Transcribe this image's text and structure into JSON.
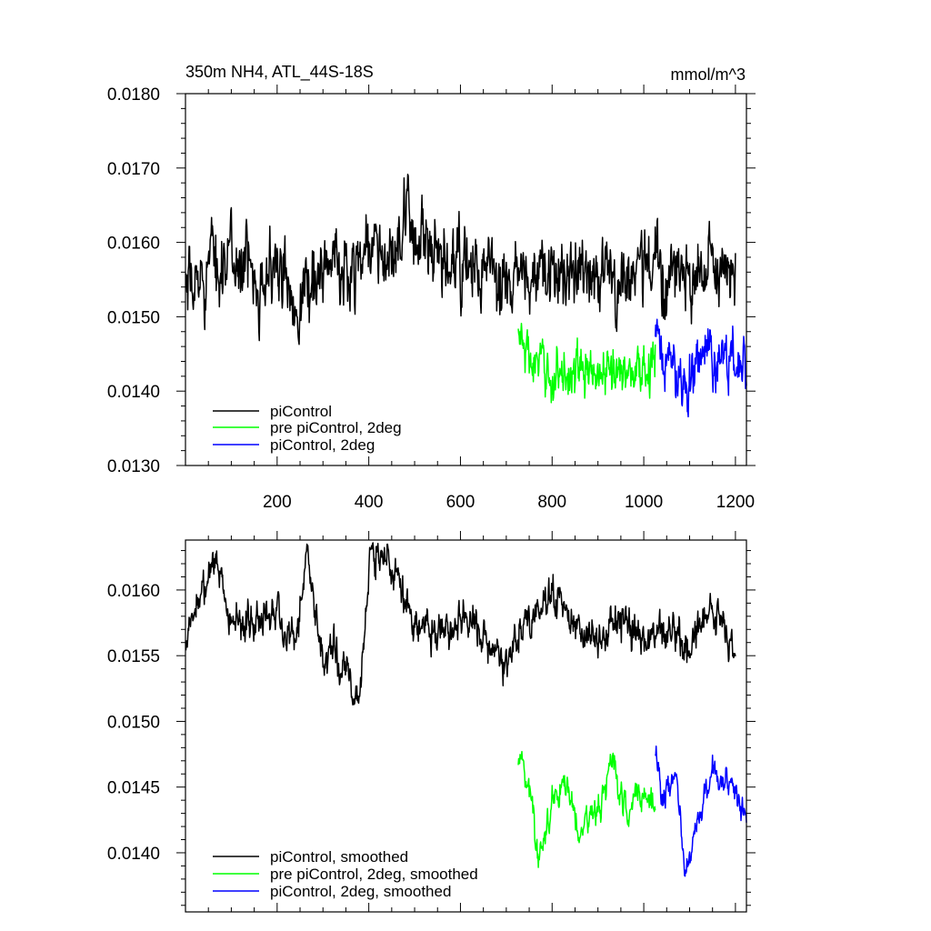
{
  "chart_data": [
    {
      "type": "line",
      "title_left": "350m NH4, ATL_44S-18S",
      "title_right": "mmol/m^3",
      "xlim": [
        0,
        1224
      ],
      "ylim": [
        0.013,
        0.018
      ],
      "xticks": [
        "200",
        "400",
        "600",
        "800",
        "1000",
        "1200"
      ],
      "xtick_values": [
        200,
        400,
        600,
        800,
        1000,
        1200
      ],
      "yticks": [
        "0.0130",
        "0.0140",
        "0.0150",
        "0.0160",
        "0.0170",
        "0.0180"
      ],
      "ytick_values": [
        0.013,
        0.014,
        0.015,
        0.016,
        0.017,
        0.018
      ],
      "legend_position": "bottom-left",
      "series": [
        {
          "name": "piControl",
          "color": "#000000",
          "x_start": 1,
          "x_end": 1200,
          "points": [
            [
              1,
              0.0152
            ],
            [
              50,
              0.0157
            ],
            [
              100,
              0.0158
            ],
            [
              150,
              0.0156
            ],
            [
              200,
              0.0156
            ],
            [
              245,
              0.0152
            ],
            [
              300,
              0.0157
            ],
            [
              350,
              0.0156
            ],
            [
              400,
              0.016
            ],
            [
              450,
              0.0157
            ],
            [
              490,
              0.0163
            ],
            [
              550,
              0.0156
            ],
            [
              600,
              0.0157
            ],
            [
              650,
              0.0156
            ],
            [
              700,
              0.0154
            ],
            [
              750,
              0.0155
            ],
            [
              800,
              0.0155
            ],
            [
              850,
              0.0157
            ],
            [
              900,
              0.0156
            ],
            [
              950,
              0.0155
            ],
            [
              1000,
              0.0157
            ],
            [
              1050,
              0.0156
            ],
            [
              1100,
              0.0155
            ],
            [
              1150,
              0.0156
            ],
            [
              1200,
              0.0155
            ]
          ],
          "mean": 0.0157,
          "noise": 0.00045,
          "min": 0.0146,
          "max": 0.0171
        },
        {
          "name": "pre piControl, 2deg",
          "color": "#00ff00",
          "x_start": 726,
          "x_end": 1025,
          "points": [
            [
              726,
              0.0148
            ],
            [
              750,
              0.0144
            ],
            [
              800,
              0.0142
            ],
            [
              850,
              0.0143
            ],
            [
              900,
              0.0142
            ],
            [
              950,
              0.0143
            ],
            [
              1000,
              0.0143
            ],
            [
              1025,
              0.0144
            ]
          ],
          "mean": 0.0143,
          "noise": 0.0003,
          "min": 0.0134,
          "max": 0.0153
        },
        {
          "name": "piControl, 2deg",
          "color": "#0000ff",
          "x_start": 1025,
          "x_end": 1224,
          "points": [
            [
              1025,
              0.0146
            ],
            [
              1050,
              0.0144
            ],
            [
              1090,
              0.0141
            ],
            [
              1120,
              0.0145
            ],
            [
              1150,
              0.0144
            ],
            [
              1190,
              0.0145
            ],
            [
              1224,
              0.0142
            ]
          ],
          "mean": 0.0144,
          "noise": 0.00035,
          "min": 0.0133,
          "max": 0.0151
        }
      ]
    },
    {
      "type": "line",
      "xlim": [
        0,
        1224
      ],
      "ylim": [
        0.01355,
        0.01638
      ],
      "xtick_values": [
        200,
        400,
        600,
        800,
        1000,
        1200
      ],
      "yticks": [
        "0.0140",
        "0.0145",
        "0.0150",
        "0.0155",
        "0.0160"
      ],
      "ytick_values": [
        0.014,
        0.0145,
        0.015,
        0.0155,
        0.016
      ],
      "legend_position": "bottom-left",
      "series": [
        {
          "name": "piControl, smoothed",
          "color": "#000000",
          "x_start": 1,
          "x_end": 1200,
          "points": [
            [
              1,
              0.01558
            ],
            [
              30,
              0.01598
            ],
            [
              70,
              0.01625
            ],
            [
              100,
              0.0157
            ],
            [
              150,
              0.01578
            ],
            [
              200,
              0.01585
            ],
            [
              240,
              0.0156
            ],
            [
              265,
              0.01625
            ],
            [
              300,
              0.01548
            ],
            [
              330,
              0.01555
            ],
            [
              380,
              0.01515
            ],
            [
              405,
              0.01632
            ],
            [
              450,
              0.0162
            ],
            [
              500,
              0.01578
            ],
            [
              550,
              0.01565
            ],
            [
              600,
              0.0158
            ],
            [
              650,
              0.0157
            ],
            [
              700,
              0.01548
            ],
            [
              750,
              0.01578
            ],
            [
              800,
              0.01598
            ],
            [
              850,
              0.01575
            ],
            [
              900,
              0.0156
            ],
            [
              950,
              0.0158
            ],
            [
              1000,
              0.0156
            ],
            [
              1050,
              0.0157
            ],
            [
              1100,
              0.01555
            ],
            [
              1150,
              0.0158
            ],
            [
              1200,
              0.01556
            ]
          ],
          "mean": 0.01568,
          "noise": 0.00013,
          "min": 0.01512,
          "max": 0.01636
        },
        {
          "name": "pre piControl, 2deg, smoothed",
          "color": "#00ff00",
          "x_start": 726,
          "x_end": 1025,
          "points": [
            [
              726,
              0.01478
            ],
            [
              750,
              0.0145
            ],
            [
              770,
              0.01395
            ],
            [
              800,
              0.0144
            ],
            [
              830,
              0.01455
            ],
            [
              860,
              0.0142
            ],
            [
              900,
              0.0143
            ],
            [
              930,
              0.0147
            ],
            [
              960,
              0.0143
            ],
            [
              1000,
              0.01445
            ],
            [
              1025,
              0.0144
            ]
          ],
          "mean": 0.01432,
          "noise": 0.00011,
          "min": 0.01388,
          "max": 0.01478
        },
        {
          "name": "piControl, 2deg, smoothed",
          "color": "#0000ff",
          "x_start": 1025,
          "x_end": 1224,
          "points": [
            [
              1025,
              0.01482
            ],
            [
              1040,
              0.0144
            ],
            [
              1070,
              0.0146
            ],
            [
              1090,
              0.01383
            ],
            [
              1120,
              0.0143
            ],
            [
              1150,
              0.0146
            ],
            [
              1190,
              0.01455
            ],
            [
              1224,
              0.01428
            ]
          ],
          "mean": 0.01448,
          "noise": 9e-05,
          "min": 0.01382,
          "max": 0.01483
        }
      ]
    }
  ]
}
